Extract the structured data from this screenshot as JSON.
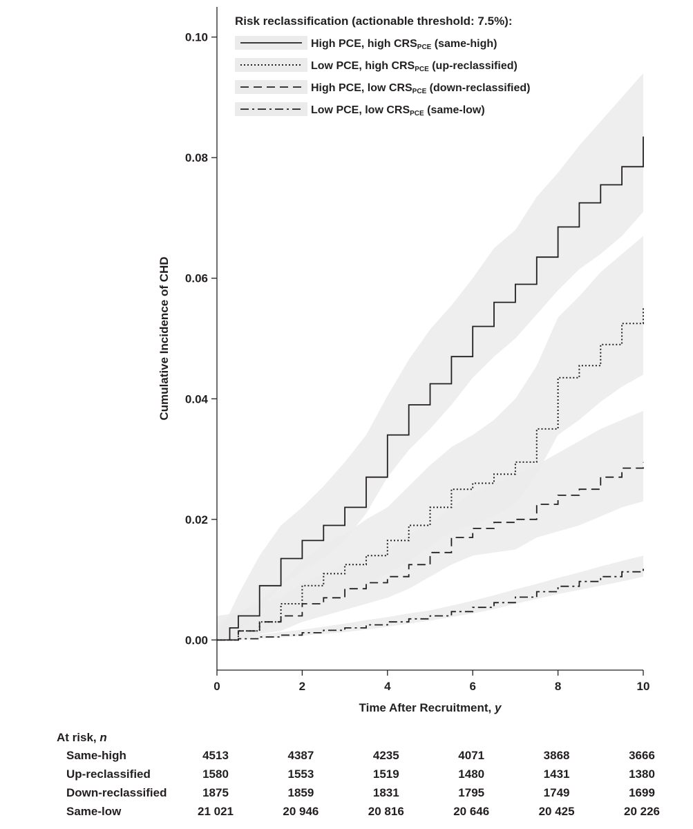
{
  "chart_data": {
    "type": "line",
    "xlabel": "Time After Recruitment, ",
    "xlabel_var": "y",
    "ylabel": "Cumulative Incidence of CHD",
    "xlim": [
      0,
      10
    ],
    "ylim": [
      -0.005,
      0.105
    ],
    "xticks": [
      0,
      2,
      4,
      6,
      8,
      10
    ],
    "yticks": [
      0.0,
      0.02,
      0.04,
      0.06,
      0.08,
      0.1
    ],
    "ytick_labels": [
      "0.00",
      "0.02",
      "0.04",
      "0.06",
      "0.08",
      "0.10"
    ],
    "grid": false,
    "legend": {
      "title": "Risk reclassification (actionable threshold: 7.5%):",
      "position": "top-left"
    },
    "series": [
      {
        "name": "same-high",
        "label_a": "High PCE, high CRS",
        "label_sub": "PCE",
        "label_b": " (same-high)",
        "style": "solid",
        "x": [
          0,
          0.3,
          0.5,
          1,
          1.5,
          2,
          2.5,
          3,
          3.5,
          4,
          4.5,
          5,
          5.5,
          6,
          6.5,
          7,
          7.5,
          8,
          8.5,
          9,
          9.5,
          10
        ],
        "y": [
          0,
          0.002,
          0.004,
          0.009,
          0.0135,
          0.0165,
          0.019,
          0.022,
          0.027,
          0.034,
          0.039,
          0.0425,
          0.047,
          0.052,
          0.056,
          0.059,
          0.0635,
          0.0685,
          0.0725,
          0.0755,
          0.0785,
          0.0835
        ],
        "ci_lower": [
          0,
          0.0005,
          0.0015,
          0.005,
          0.009,
          0.0115,
          0.0135,
          0.0165,
          0.021,
          0.027,
          0.0315,
          0.035,
          0.039,
          0.0435,
          0.047,
          0.05,
          0.054,
          0.058,
          0.0615,
          0.064,
          0.067,
          0.071
        ],
        "ci_upper": [
          0.001,
          0.0045,
          0.0075,
          0.014,
          0.019,
          0.022,
          0.0255,
          0.0295,
          0.034,
          0.0405,
          0.0465,
          0.0515,
          0.0555,
          0.06,
          0.065,
          0.068,
          0.0735,
          0.0775,
          0.082,
          0.086,
          0.09,
          0.094
        ]
      },
      {
        "name": "up-reclassified",
        "label_a": "Low PCE, high CRS",
        "label_sub": "PCE",
        "label_b": " (up-reclassified)",
        "style": "dotted",
        "x": [
          0,
          0.5,
          1,
          1.5,
          2,
          2.5,
          3,
          3.5,
          4,
          4.5,
          5,
          5.5,
          6,
          6.5,
          7,
          7.5,
          8,
          8.5,
          9,
          9.5,
          10
        ],
        "y": [
          0,
          0.0015,
          0.003,
          0.006,
          0.009,
          0.011,
          0.0125,
          0.014,
          0.0165,
          0.019,
          0.022,
          0.025,
          0.026,
          0.0275,
          0.0295,
          0.035,
          0.0435,
          0.0455,
          0.049,
          0.0525,
          0.055
        ],
        "ci_lower": [
          0,
          0,
          0.001,
          0.003,
          0.005,
          0.0065,
          0.008,
          0.009,
          0.011,
          0.013,
          0.0155,
          0.018,
          0.019,
          0.0205,
          0.0225,
          0.0275,
          0.034,
          0.0365,
          0.0395,
          0.042,
          0.044
        ],
        "ci_upper": [
          0.004,
          0.0045,
          0.0065,
          0.0095,
          0.013,
          0.016,
          0.0175,
          0.02,
          0.022,
          0.0255,
          0.029,
          0.032,
          0.034,
          0.0365,
          0.04,
          0.0455,
          0.0535,
          0.057,
          0.061,
          0.064,
          0.067
        ]
      },
      {
        "name": "down-reclassified",
        "label_a": "High PCE, low CRS",
        "label_sub": "PCE",
        "label_b": " (down-reclassified)",
        "style": "dashed",
        "x": [
          0,
          0.5,
          1,
          1.5,
          2,
          2.5,
          3,
          3.5,
          4,
          4.5,
          5,
          5.5,
          6,
          6.5,
          7,
          7.5,
          8,
          8.5,
          9,
          9.5,
          10
        ],
        "y": [
          0,
          0.0015,
          0.003,
          0.004,
          0.006,
          0.007,
          0.0085,
          0.0095,
          0.0105,
          0.0125,
          0.0145,
          0.017,
          0.0185,
          0.0195,
          0.02,
          0.0225,
          0.024,
          0.025,
          0.027,
          0.0285,
          0.0295
        ],
        "ci_lower": [
          0,
          0,
          0.001,
          0.0015,
          0.003,
          0.004,
          0.005,
          0.006,
          0.007,
          0.0085,
          0.0105,
          0.0125,
          0.014,
          0.0145,
          0.015,
          0.017,
          0.018,
          0.019,
          0.0205,
          0.022,
          0.023
        ],
        "ci_upper": [
          0.0025,
          0.0045,
          0.006,
          0.007,
          0.0095,
          0.011,
          0.0125,
          0.0135,
          0.015,
          0.0175,
          0.0195,
          0.022,
          0.0245,
          0.026,
          0.0275,
          0.029,
          0.031,
          0.033,
          0.035,
          0.0365,
          0.038
        ]
      },
      {
        "name": "same-low",
        "label_a": "Low PCE, low CRS",
        "label_sub": "PCE",
        "label_b": " (same-low)",
        "style": "dashdot",
        "x": [
          0,
          0.5,
          1,
          1.5,
          2,
          2.5,
          3,
          3.5,
          4,
          4.5,
          5,
          5.5,
          6,
          6.5,
          7,
          7.5,
          8,
          8.5,
          9,
          9.5,
          10
        ],
        "y": [
          0,
          0.0002,
          0.0005,
          0.0008,
          0.0012,
          0.0016,
          0.002,
          0.0025,
          0.003,
          0.0035,
          0.004,
          0.0047,
          0.0054,
          0.0062,
          0.0071,
          0.008,
          0.0089,
          0.0097,
          0.0105,
          0.0113,
          0.0122
        ],
        "ci_lower": [
          0,
          0,
          0.0002,
          0.0004,
          0.0007,
          0.001,
          0.0013,
          0.0017,
          0.0022,
          0.0027,
          0.0032,
          0.0038,
          0.0044,
          0.0051,
          0.006,
          0.0068,
          0.0076,
          0.0083,
          0.009,
          0.0097,
          0.0105
        ],
        "ci_upper": [
          0.0004,
          0.0006,
          0.0009,
          0.0013,
          0.0017,
          0.0022,
          0.0027,
          0.0033,
          0.0038,
          0.0044,
          0.0049,
          0.0057,
          0.0065,
          0.0074,
          0.0084,
          0.0093,
          0.0103,
          0.0112,
          0.0122,
          0.0131,
          0.014
        ]
      }
    ]
  },
  "at_risk": {
    "title": "At risk, ",
    "title_var": "n",
    "rows": [
      {
        "label": "Same-high",
        "values": [
          "4513",
          "4387",
          "4235",
          "4071",
          "3868",
          "3666"
        ]
      },
      {
        "label": "Up-reclassified",
        "values": [
          "1580",
          "1553",
          "1519",
          "1480",
          "1431",
          "1380"
        ]
      },
      {
        "label": "Down-reclassified",
        "values": [
          "1875",
          "1859",
          "1831",
          "1795",
          "1749",
          "1699"
        ]
      },
      {
        "label": "Same-low",
        "values": [
          "21 021",
          "20 946",
          "20 816",
          "20 646",
          "20 425",
          "20 226"
        ]
      }
    ]
  }
}
